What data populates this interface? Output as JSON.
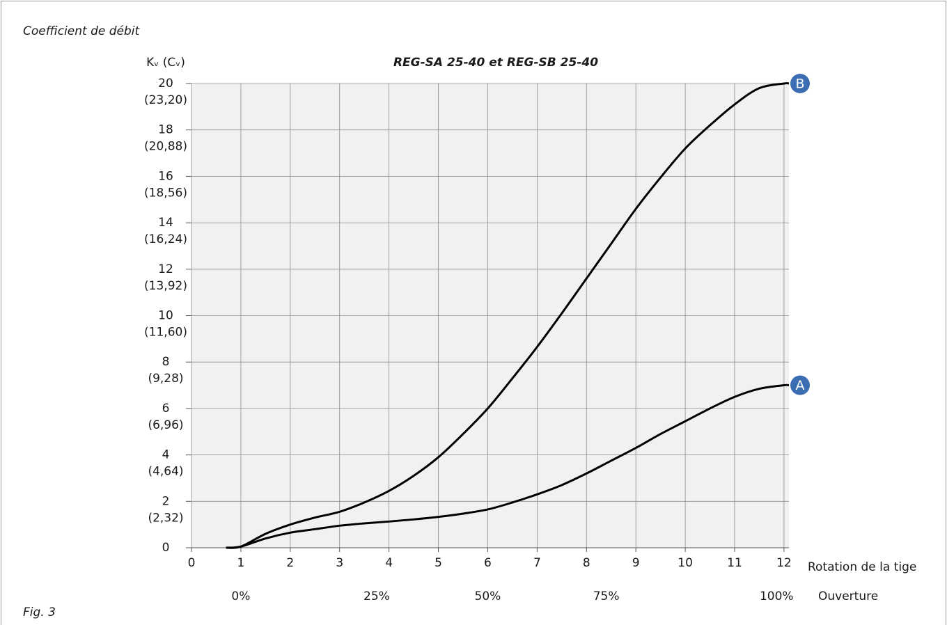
{
  "chart_data": {
    "type": "line",
    "header": "Coefficient de débit",
    "title": "REG-SA 25-40 et REG-SB 25-40",
    "footer": "Fig. 3",
    "y_label": "Kᵥ (Cᵥ)",
    "x_label": "Rotation de la tige",
    "x2_label": "Ouverture",
    "x": [
      0.7,
      1,
      1.5,
      2,
      2.5,
      3,
      3.5,
      4,
      4.5,
      5,
      5.5,
      6,
      6.5,
      7,
      7.5,
      8,
      8.5,
      9,
      9.5,
      10,
      10.5,
      11,
      11.5,
      12,
      12.1
    ],
    "series": [
      {
        "name": "A",
        "color": "#000000",
        "marker_color": "#3b6db3",
        "values": [
          0,
          0.05,
          0.4,
          0.65,
          0.8,
          0.95,
          1.05,
          1.13,
          1.22,
          1.33,
          1.47,
          1.65,
          1.95,
          2.3,
          2.7,
          3.2,
          3.75,
          4.3,
          4.9,
          5.45,
          6.0,
          6.5,
          6.85,
          7.0,
          7.0
        ]
      },
      {
        "name": "B",
        "color": "#000000",
        "marker_color": "#3b6db3",
        "values": [
          0,
          0.05,
          0.6,
          1.0,
          1.3,
          1.55,
          1.95,
          2.45,
          3.1,
          3.9,
          4.9,
          6.0,
          7.3,
          8.65,
          10.1,
          11.6,
          13.1,
          14.6,
          15.95,
          17.2,
          18.2,
          19.1,
          19.8,
          20,
          20
        ]
      }
    ],
    "xlim": [
      0,
      12.1
    ],
    "ylim": [
      0,
      20
    ],
    "xticks": [
      0,
      1,
      2,
      3,
      4,
      5,
      6,
      7,
      8,
      9,
      10,
      11,
      12
    ],
    "yticks": [
      0,
      2,
      4,
      6,
      8,
      10,
      12,
      14,
      16,
      18,
      20
    ],
    "y_secondary_labels": [
      null,
      "(2,32)",
      "(4,64)",
      "(6,96)",
      "(9,28)",
      "(11,60)",
      "(13,92)",
      "(16,24)",
      "(18,56)",
      "(20,88)",
      "(23,20)"
    ],
    "x2ticks": [
      {
        "value": 1,
        "label": "0%"
      },
      {
        "value": 3.75,
        "label": "25%"
      },
      {
        "value": 6,
        "label": "50%"
      },
      {
        "value": 8.4,
        "label": "75%"
      },
      {
        "value": 11.85,
        "label": "100%"
      }
    ],
    "grid": true
  }
}
